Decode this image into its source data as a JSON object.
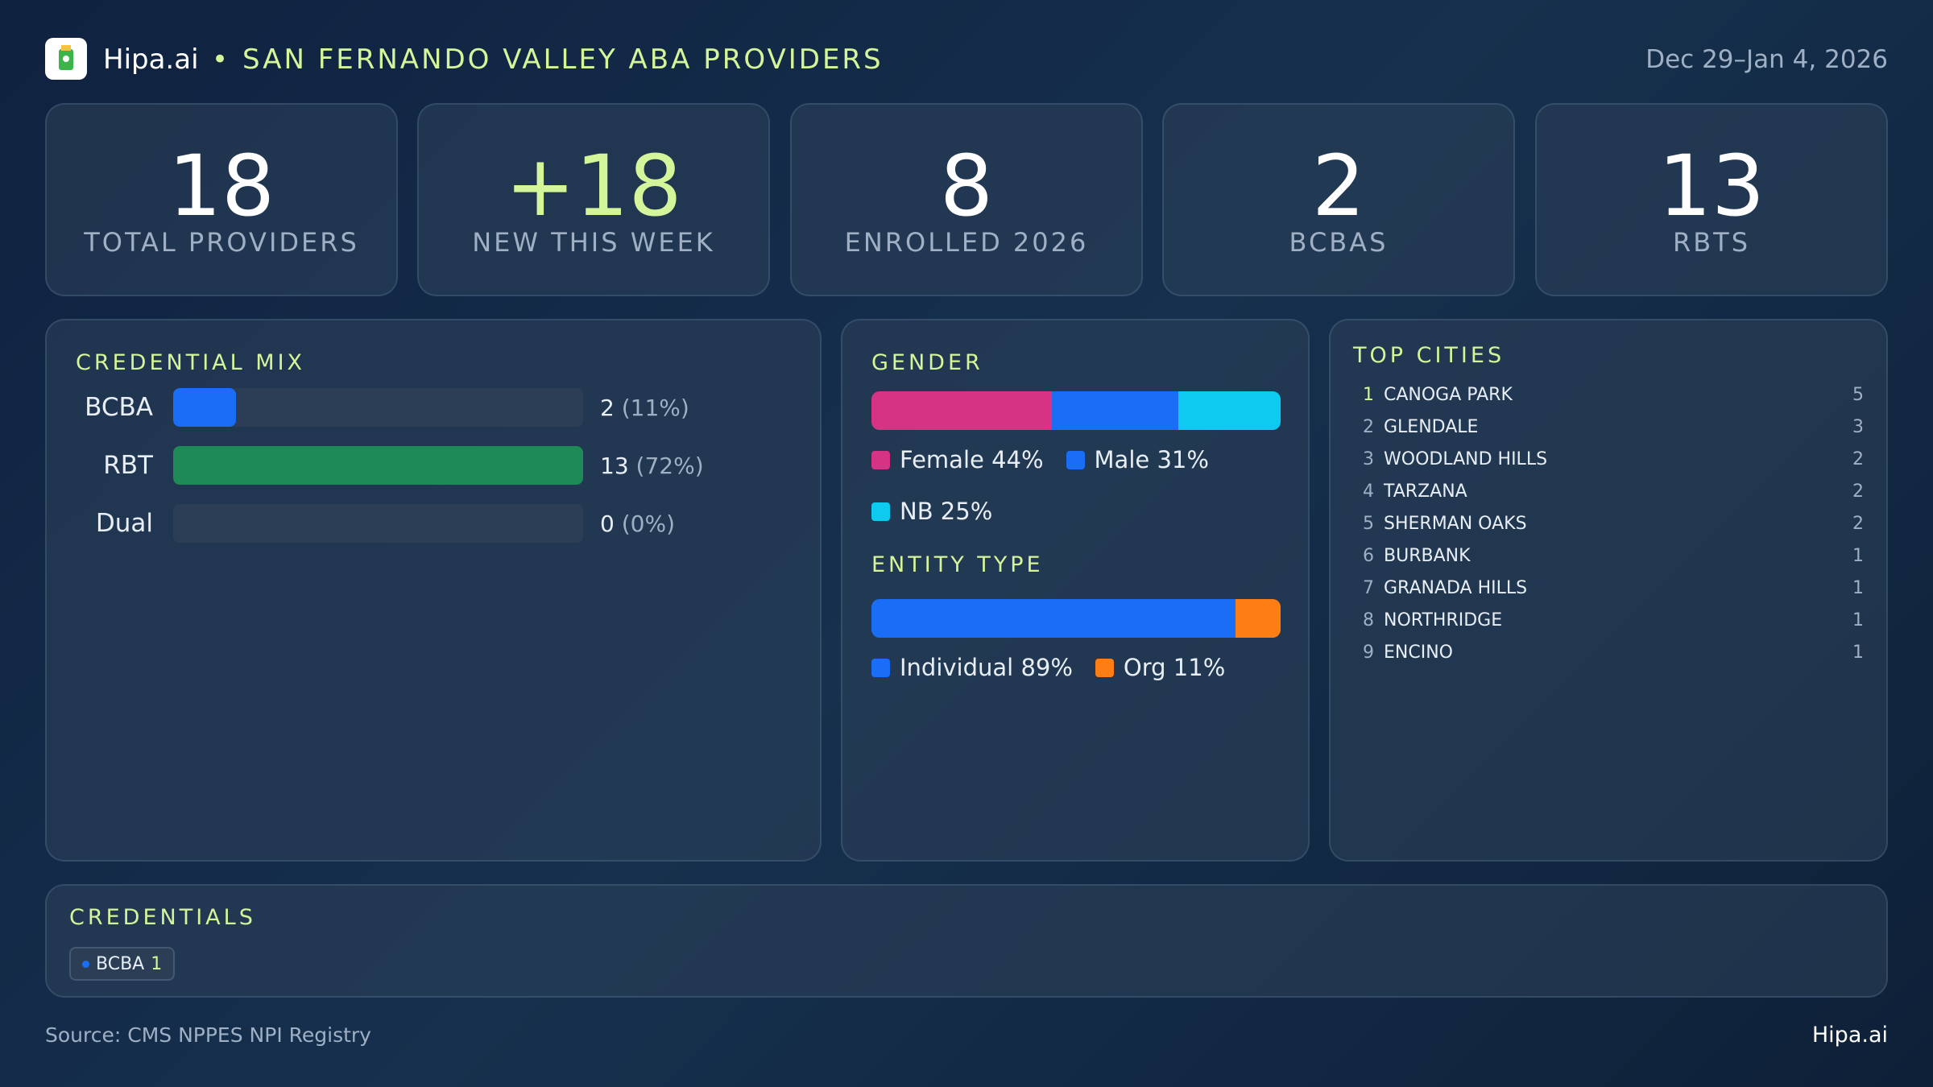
{
  "header": {
    "brand": "Hipa.ai",
    "title": "SAN FERNANDO VALLEY ABA PROVIDERS",
    "date": "Dec 29–Jan 4, 2026"
  },
  "kpis": [
    {
      "value": "18",
      "label": "TOTAL PROVIDERS"
    },
    {
      "value": "+18",
      "label": "NEW THIS WEEK"
    },
    {
      "value": "8",
      "label": "ENROLLED 2026"
    },
    {
      "value": "2",
      "label": "BCBAS"
    },
    {
      "value": "13",
      "label": "RBTS"
    }
  ],
  "credential_mix": {
    "title": "CREDENTIAL MIX",
    "rows": [
      {
        "label": "BCBA",
        "value": 2,
        "pct": "(11%)",
        "color": "#1a6ef5"
      },
      {
        "label": "RBT",
        "value": 13,
        "pct": "(72%)",
        "color": "#1e8a55"
      },
      {
        "label": "Dual",
        "value": 0,
        "pct": "(0%)",
        "color": "#1a6ef5"
      }
    ]
  },
  "gender": {
    "title": "GENDER",
    "segments": [
      {
        "label": "Female 44%",
        "value": 44,
        "color": "#d63384"
      },
      {
        "label": "Male 31%",
        "value": 31,
        "color": "#1a6ef5"
      },
      {
        "label": "NB 25%",
        "value": 25,
        "color": "#0dcaf0"
      }
    ]
  },
  "entity_type": {
    "title": "ENTITY TYPE",
    "segments": [
      {
        "label": "Individual 89%",
        "value": 89,
        "color": "#1a6ef5"
      },
      {
        "label": "Org 11%",
        "value": 11,
        "color": "#fd7e14"
      }
    ]
  },
  "top_cities": {
    "title": "TOP CITIES",
    "rows": [
      {
        "rank": "1",
        "name": "CANOGA PARK",
        "count": "5"
      },
      {
        "rank": "2",
        "name": "GLENDALE",
        "count": "3"
      },
      {
        "rank": "3",
        "name": "WOODLAND HILLS",
        "count": "2"
      },
      {
        "rank": "4",
        "name": "TARZANA",
        "count": "2"
      },
      {
        "rank": "5",
        "name": "SHERMAN OAKS",
        "count": "2"
      },
      {
        "rank": "6",
        "name": "BURBANK",
        "count": "1"
      },
      {
        "rank": "7",
        "name": "GRANADA HILLS",
        "count": "1"
      },
      {
        "rank": "8",
        "name": "NORTHRIDGE",
        "count": "1"
      },
      {
        "rank": "9",
        "name": "ENCINO",
        "count": "1"
      }
    ]
  },
  "credentials": {
    "title": "CREDENTIALS",
    "chips": [
      {
        "label": "BCBA",
        "count": "1"
      }
    ]
  },
  "footer": {
    "source": "Source: CMS NPPES NPI Registry",
    "brand": "Hipa.ai"
  }
}
